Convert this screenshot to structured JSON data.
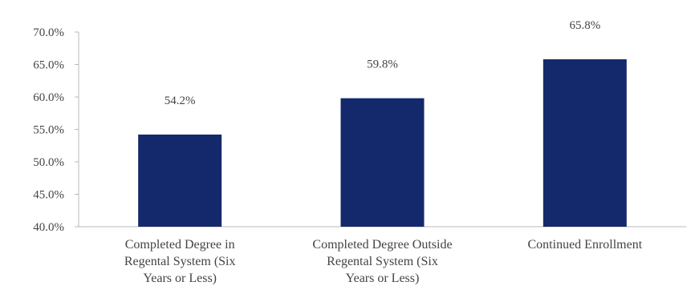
{
  "chart_data": {
    "type": "bar",
    "categories": [
      [
        "Completed Degree in",
        "Regental System (Six",
        "Years or Less)"
      ],
      [
        "Completed Degree Outside",
        "Regental System (Six",
        "Years or Less)"
      ],
      [
        "Continued Enrollment"
      ]
    ],
    "values": [
      54.2,
      59.8,
      65.8
    ],
    "data_labels": [
      "54.2%",
      "59.8%",
      "65.8%"
    ],
    "ylim": [
      40,
      70
    ],
    "yticks": [
      40,
      45,
      50,
      55,
      60,
      65,
      70
    ],
    "ytick_labels": [
      "40.0%",
      "45.0%",
      "50.0%",
      "55.0%",
      "60.0%",
      "65.0%",
      "70.0%"
    ],
    "grid": false,
    "legend": "none",
    "colors": {
      "bar": "#13296b",
      "axis": "#b8b8b8",
      "text": "#444444"
    }
  }
}
